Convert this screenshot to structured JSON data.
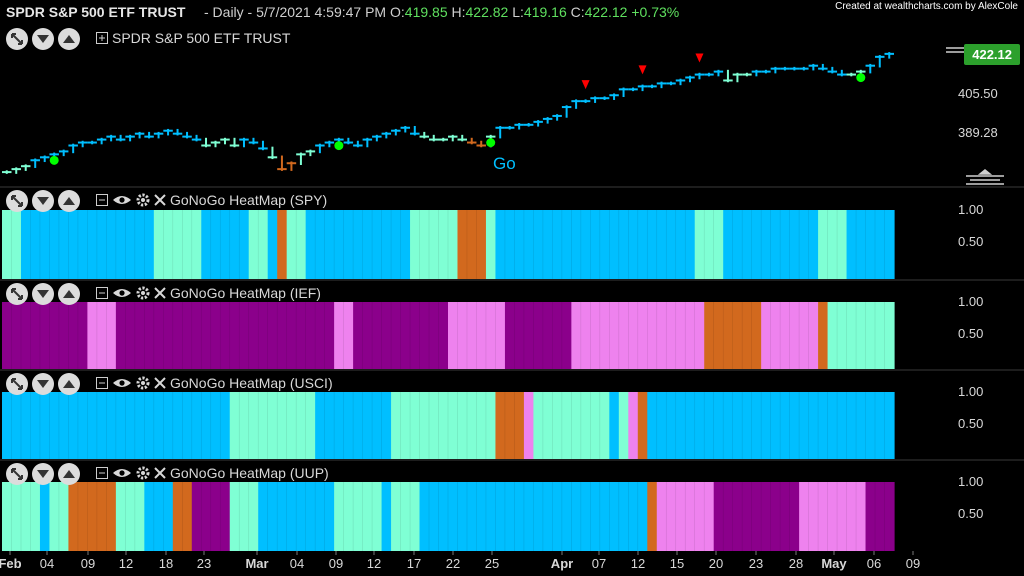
{
  "header": {
    "symbol": "SPDR S&P 500 ETF TRUST",
    "interval_date": "- Daily - 5/7/2021 4:59:47 PM",
    "open_label": "O:",
    "open_value": "419.85",
    "high_label": "H:",
    "high_value": "422.82",
    "low_label": "L:",
    "low_value": "419.16",
    "close_label": "C:",
    "close_value": "422.12",
    "change": "+0.73%",
    "credit": "Created at wealthcharts.com by AlexCole"
  },
  "main_panel": {
    "title": "SPDR S&P 500 ETF TRUST",
    "last_price": "422.12",
    "y_ticks": [
      "405.50",
      "389.28"
    ],
    "go_label": "Go"
  },
  "panels": [
    {
      "title": "GoNoGo HeatMap (SPY)",
      "y_ticks": [
        "1.00",
        "0.50"
      ]
    },
    {
      "title": "GoNoGo HeatMap (IEF)",
      "y_ticks": [
        "1.00",
        "0.50"
      ]
    },
    {
      "title": "GoNoGo HeatMap (USCI)",
      "y_ticks": [
        "1.00",
        "0.50"
      ]
    },
    {
      "title": "GoNoGo HeatMap (UUP)",
      "y_ticks": [
        "1.00",
        "0.50"
      ]
    }
  ],
  "x_ticks": [
    {
      "label": "Feb",
      "bold": true
    },
    {
      "label": "04"
    },
    {
      "label": "09"
    },
    {
      "label": "12"
    },
    {
      "label": "18"
    },
    {
      "label": "23"
    },
    {
      "label": "Mar",
      "bold": true
    },
    {
      "label": "04"
    },
    {
      "label": "09"
    },
    {
      "label": "12"
    },
    {
      "label": "17"
    },
    {
      "label": "22"
    },
    {
      "label": "25"
    },
    {
      "label": "Apr",
      "bold": true
    },
    {
      "label": "07"
    },
    {
      "label": "12"
    },
    {
      "label": "15"
    },
    {
      "label": "20"
    },
    {
      "label": "23"
    },
    {
      "label": "28"
    },
    {
      "label": "May",
      "bold": true
    },
    {
      "label": "06"
    },
    {
      "label": "09"
    }
  ],
  "colors": {
    "strong_go": "#00bfff",
    "weak_go": "#7fffd4",
    "nogo_weak": "#ee82ee",
    "nogo_strong": "#8b008b",
    "neutral": "#d2691e",
    "up": "#5fe05f"
  },
  "chart_data": {
    "type": "bar",
    "price": {
      "y_range": [
        380,
        425
      ],
      "close": [
        382,
        383,
        384,
        386,
        387,
        388,
        389,
        391,
        392,
        392,
        393,
        394,
        393,
        394,
        395,
        394,
        395,
        396,
        395,
        394,
        393,
        391,
        392,
        393,
        391,
        393,
        392,
        390,
        387,
        383,
        385,
        388,
        389,
        391,
        392,
        393,
        392,
        391,
        393,
        394,
        395,
        396,
        397,
        395,
        394,
        393,
        393,
        394,
        393,
        392,
        391,
        394,
        397,
        397,
        398,
        398,
        399,
        400,
        401,
        404,
        406,
        406,
        407,
        407,
        408,
        410,
        410,
        411,
        411,
        412,
        412,
        413,
        414,
        415,
        415,
        416,
        413,
        415,
        415,
        416,
        416,
        417,
        417,
        417,
        417,
        418,
        417,
        416,
        415,
        415,
        416,
        418,
        421,
        422
      ],
      "color": [
        "weak_go",
        "weak_go",
        "weak_go",
        "strong_go",
        "strong_go",
        "strong_go",
        "strong_go",
        "strong_go",
        "strong_go",
        "strong_go",
        "strong_go",
        "strong_go",
        "strong_go",
        "strong_go",
        "strong_go",
        "strong_go",
        "strong_go",
        "strong_go",
        "strong_go",
        "strong_go",
        "strong_go",
        "weak_go",
        "weak_go",
        "weak_go",
        "weak_go",
        "strong_go",
        "strong_go",
        "strong_go",
        "weak_go",
        "neutral",
        "neutral",
        "weak_go",
        "weak_go",
        "strong_go",
        "strong_go",
        "strong_go",
        "strong_go",
        "strong_go",
        "strong_go",
        "strong_go",
        "strong_go",
        "strong_go",
        "strong_go",
        "strong_go",
        "weak_go",
        "weak_go",
        "weak_go",
        "weak_go",
        "weak_go",
        "neutral",
        "neutral",
        "weak_go",
        "strong_go",
        "strong_go",
        "strong_go",
        "strong_go",
        "strong_go",
        "strong_go",
        "strong_go",
        "strong_go",
        "strong_go",
        "strong_go",
        "strong_go",
        "strong_go",
        "strong_go",
        "strong_go",
        "strong_go",
        "strong_go",
        "strong_go",
        "strong_go",
        "strong_go",
        "strong_go",
        "strong_go",
        "strong_go",
        "strong_go",
        "strong_go",
        "weak_go",
        "weak_go",
        "weak_go",
        "strong_go",
        "strong_go",
        "strong_go",
        "strong_go",
        "strong_go",
        "strong_go",
        "strong_go",
        "strong_go",
        "strong_go",
        "strong_go",
        "weak_go",
        "weak_go",
        "strong_go",
        "strong_go",
        "strong_go"
      ],
      "go_dots": [
        5,
        35,
        51,
        90
      ],
      "nogo_triangles": [
        61,
        67,
        73
      ]
    },
    "heatmaps": {
      "SPY": [
        "weak_go",
        "weak_go",
        "strong_go",
        "strong_go",
        "strong_go",
        "strong_go",
        "strong_go",
        "strong_go",
        "strong_go",
        "strong_go",
        "strong_go",
        "strong_go",
        "strong_go",
        "strong_go",
        "strong_go",
        "strong_go",
        "weak_go",
        "weak_go",
        "weak_go",
        "weak_go",
        "weak_go",
        "strong_go",
        "strong_go",
        "strong_go",
        "strong_go",
        "strong_go",
        "weak_go",
        "weak_go",
        "strong_go",
        "neutral",
        "weak_go",
        "weak_go",
        "strong_go",
        "strong_go",
        "strong_go",
        "strong_go",
        "strong_go",
        "strong_go",
        "strong_go",
        "strong_go",
        "strong_go",
        "strong_go",
        "strong_go",
        "weak_go",
        "weak_go",
        "weak_go",
        "weak_go",
        "weak_go",
        "neutral",
        "neutral",
        "neutral",
        "weak_go",
        "strong_go",
        "strong_go",
        "strong_go",
        "strong_go",
        "strong_go",
        "strong_go",
        "strong_go",
        "strong_go",
        "strong_go",
        "strong_go",
        "strong_go",
        "strong_go",
        "strong_go",
        "strong_go",
        "strong_go",
        "strong_go",
        "strong_go",
        "strong_go",
        "strong_go",
        "strong_go",
        "strong_go",
        "weak_go",
        "weak_go",
        "weak_go",
        "strong_go",
        "strong_go",
        "strong_go",
        "strong_go",
        "strong_go",
        "strong_go",
        "strong_go",
        "strong_go",
        "strong_go",
        "strong_go",
        "weak_go",
        "weak_go",
        "weak_go",
        "strong_go",
        "strong_go",
        "strong_go",
        "strong_go",
        "strong_go"
      ],
      "IEF": [
        "nogo_strong",
        "nogo_strong",
        "nogo_strong",
        "nogo_strong",
        "nogo_strong",
        "nogo_strong",
        "nogo_strong",
        "nogo_strong",
        "nogo_strong",
        "nogo_weak",
        "nogo_weak",
        "nogo_weak",
        "nogo_strong",
        "nogo_strong",
        "nogo_strong",
        "nogo_strong",
        "nogo_strong",
        "nogo_strong",
        "nogo_strong",
        "nogo_strong",
        "nogo_strong",
        "nogo_strong",
        "nogo_strong",
        "nogo_strong",
        "nogo_strong",
        "nogo_strong",
        "nogo_strong",
        "nogo_strong",
        "nogo_strong",
        "nogo_strong",
        "nogo_strong",
        "nogo_strong",
        "nogo_strong",
        "nogo_strong",
        "nogo_strong",
        "nogo_weak",
        "nogo_weak",
        "nogo_strong",
        "nogo_strong",
        "nogo_strong",
        "nogo_strong",
        "nogo_strong",
        "nogo_strong",
        "nogo_strong",
        "nogo_strong",
        "nogo_strong",
        "nogo_strong",
        "nogo_weak",
        "nogo_weak",
        "nogo_weak",
        "nogo_weak",
        "nogo_weak",
        "nogo_weak",
        "nogo_strong",
        "nogo_strong",
        "nogo_strong",
        "nogo_strong",
        "nogo_strong",
        "nogo_strong",
        "nogo_strong",
        "nogo_weak",
        "nogo_weak",
        "nogo_weak",
        "nogo_weak",
        "nogo_weak",
        "nogo_weak",
        "nogo_weak",
        "nogo_weak",
        "nogo_weak",
        "nogo_weak",
        "nogo_weak",
        "nogo_weak",
        "nogo_weak",
        "nogo_weak",
        "neutral",
        "neutral",
        "neutral",
        "neutral",
        "neutral",
        "neutral",
        "nogo_weak",
        "nogo_weak",
        "nogo_weak",
        "nogo_weak",
        "nogo_weak",
        "nogo_weak",
        "neutral",
        "weak_go",
        "weak_go",
        "weak_go",
        "weak_go",
        "weak_go",
        "weak_go",
        "weak_go"
      ],
      "USCI": [
        "strong_go",
        "strong_go",
        "strong_go",
        "strong_go",
        "strong_go",
        "strong_go",
        "strong_go",
        "strong_go",
        "strong_go",
        "strong_go",
        "strong_go",
        "strong_go",
        "strong_go",
        "strong_go",
        "strong_go",
        "strong_go",
        "strong_go",
        "strong_go",
        "strong_go",
        "strong_go",
        "strong_go",
        "strong_go",
        "strong_go",
        "strong_go",
        "weak_go",
        "weak_go",
        "weak_go",
        "weak_go",
        "weak_go",
        "weak_go",
        "weak_go",
        "weak_go",
        "weak_go",
        "strong_go",
        "strong_go",
        "strong_go",
        "strong_go",
        "strong_go",
        "strong_go",
        "strong_go",
        "strong_go",
        "weak_go",
        "weak_go",
        "weak_go",
        "weak_go",
        "weak_go",
        "weak_go",
        "weak_go",
        "weak_go",
        "weak_go",
        "weak_go",
        "weak_go",
        "neutral",
        "neutral",
        "neutral",
        "nogo_weak",
        "weak_go",
        "weak_go",
        "weak_go",
        "weak_go",
        "weak_go",
        "weak_go",
        "weak_go",
        "weak_go",
        "strong_go",
        "weak_go",
        "nogo_weak",
        "neutral",
        "strong_go",
        "strong_go",
        "strong_go",
        "strong_go",
        "strong_go",
        "strong_go",
        "strong_go",
        "strong_go",
        "strong_go",
        "strong_go",
        "strong_go",
        "strong_go",
        "strong_go",
        "strong_go",
        "strong_go",
        "strong_go",
        "strong_go",
        "strong_go",
        "strong_go",
        "strong_go",
        "strong_go",
        "strong_go",
        "strong_go",
        "strong_go",
        "strong_go",
        "strong_go"
      ],
      "UUP": [
        "weak_go",
        "weak_go",
        "weak_go",
        "weak_go",
        "strong_go",
        "weak_go",
        "weak_go",
        "neutral",
        "neutral",
        "neutral",
        "neutral",
        "neutral",
        "weak_go",
        "weak_go",
        "weak_go",
        "strong_go",
        "strong_go",
        "strong_go",
        "neutral",
        "neutral",
        "nogo_strong",
        "nogo_strong",
        "nogo_strong",
        "nogo_strong",
        "weak_go",
        "weak_go",
        "weak_go",
        "strong_go",
        "strong_go",
        "strong_go",
        "strong_go",
        "strong_go",
        "strong_go",
        "strong_go",
        "strong_go",
        "weak_go",
        "weak_go",
        "weak_go",
        "weak_go",
        "weak_go",
        "strong_go",
        "weak_go",
        "weak_go",
        "weak_go",
        "strong_go",
        "strong_go",
        "strong_go",
        "strong_go",
        "strong_go",
        "strong_go",
        "strong_go",
        "strong_go",
        "strong_go",
        "strong_go",
        "strong_go",
        "strong_go",
        "strong_go",
        "strong_go",
        "strong_go",
        "strong_go",
        "strong_go",
        "strong_go",
        "strong_go",
        "strong_go",
        "strong_go",
        "strong_go",
        "strong_go",
        "strong_go",
        "neutral",
        "nogo_weak",
        "nogo_weak",
        "nogo_weak",
        "nogo_weak",
        "nogo_weak",
        "nogo_weak",
        "nogo_strong",
        "nogo_strong",
        "nogo_strong",
        "nogo_strong",
        "nogo_strong",
        "nogo_strong",
        "nogo_strong",
        "nogo_strong",
        "nogo_strong",
        "nogo_weak",
        "nogo_weak",
        "nogo_weak",
        "nogo_weak",
        "nogo_weak",
        "nogo_weak",
        "nogo_weak",
        "nogo_strong",
        "nogo_strong",
        "nogo_strong"
      ]
    },
    "heatmap_y_range": [
      0,
      1.2
    ]
  }
}
